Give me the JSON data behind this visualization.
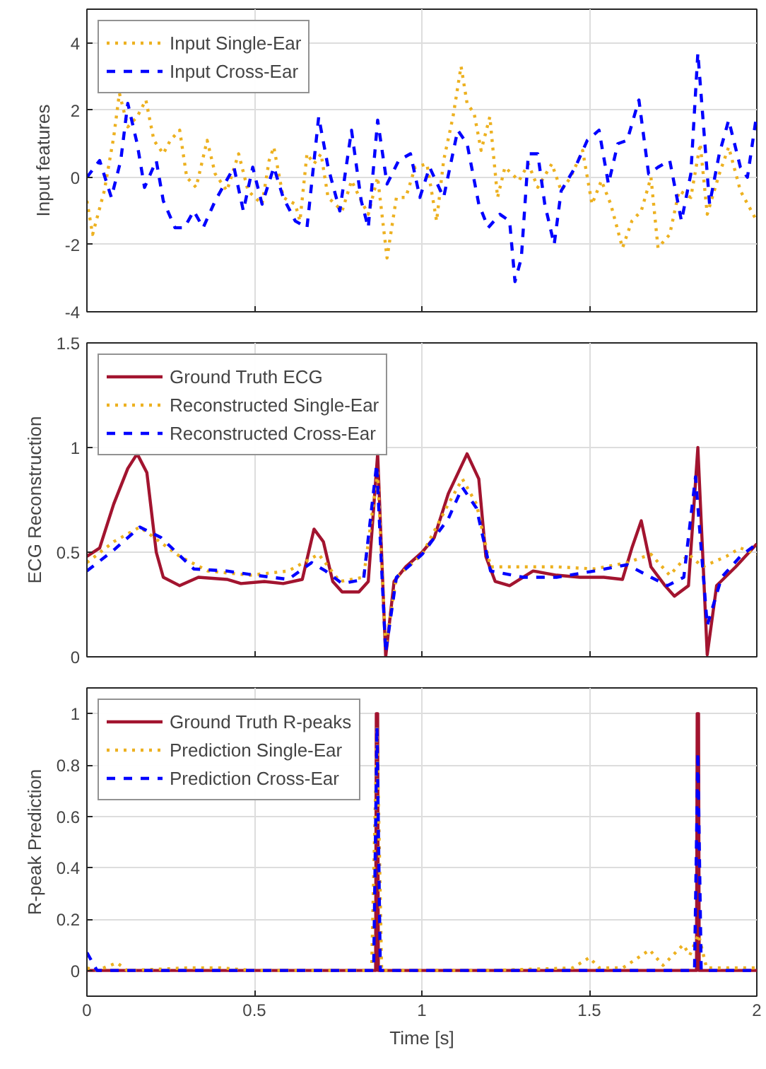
{
  "chart_data": [
    {
      "type": "line",
      "ylabel": "Input features",
      "xlim": [
        0,
        2
      ],
      "ylim": [
        -4,
        5
      ],
      "xticks": [
        0,
        0.5,
        1,
        1.5,
        2
      ],
      "yticks": [
        -4,
        -2,
        0,
        2,
        4
      ],
      "tick_labels": "y",
      "grid": true,
      "legend": "top left",
      "series": [
        {
          "name": "Input Single-Ear",
          "color": "#edb120",
          "line_style": "dotted",
          "x": [
            0,
            0.017,
            0.052,
            0.08,
            0.097,
            0.122,
            0.15,
            0.176,
            0.2,
            0.228,
            0.249,
            0.277,
            0.298,
            0.326,
            0.359,
            0.383,
            0.418,
            0.453,
            0.481,
            0.523,
            0.544,
            0.558,
            0.586,
            0.622,
            0.636,
            0.657,
            0.678,
            0.699,
            0.72,
            0.762,
            0.79,
            0.819,
            0.84,
            0.868,
            0.896,
            0.924,
            0.952,
            0.98,
            1.015,
            1.044,
            1.065,
            1.093,
            1.117,
            1.135,
            1.156,
            1.177,
            1.203,
            1.226,
            1.248,
            1.29,
            1.318,
            1.346,
            1.388,
            1.416,
            1.444,
            1.48,
            1.508,
            1.536,
            1.564,
            1.599,
            1.627,
            1.655,
            1.684,
            1.705,
            1.74,
            1.768,
            1.803,
            1.831,
            1.852,
            1.888,
            1.916,
            1.951,
            2.0
          ],
          "values": [
            -0.7,
            -1.7,
            -0.4,
            1.2,
            2.5,
            1.5,
            1.8,
            2.3,
            1.1,
            0.7,
            1.1,
            1.4,
            0.0,
            -0.3,
            1.1,
            0.1,
            -0.4,
            0.7,
            -0.4,
            -0.8,
            0.5,
            0.9,
            -0.6,
            -0.8,
            -1.3,
            0.7,
            0.4,
            0.7,
            -0.6,
            -1.0,
            -0.1,
            -0.7,
            -1.1,
            0.0,
            -2.4,
            -0.6,
            -0.6,
            0.3,
            0.4,
            -1.3,
            0.5,
            1.8,
            3.3,
            2.2,
            1.9,
            0.8,
            1.8,
            -0.6,
            0.3,
            -0.1,
            0.4,
            -0.3,
            0.4,
            -0.4,
            0.0,
            0.8,
            -0.8,
            -0.1,
            -0.8,
            -2.1,
            -1.3,
            -1.0,
            0.0,
            -2.1,
            -1.7,
            -0.4,
            -0.6,
            1.0,
            -1.1,
            0.1,
            0.9,
            -0.4,
            -1.3
          ]
        },
        {
          "name": "Input Cross-Ear",
          "color": "#0000ff",
          "line_style": "dashed",
          "x": [
            0,
            0.038,
            0.073,
            0.101,
            0.122,
            0.15,
            0.172,
            0.207,
            0.228,
            0.263,
            0.291,
            0.319,
            0.347,
            0.383,
            0.439,
            0.467,
            0.495,
            0.523,
            0.558,
            0.586,
            0.622,
            0.657,
            0.692,
            0.72,
            0.755,
            0.79,
            0.819,
            0.84,
            0.868,
            0.896,
            0.931,
            0.966,
            0.994,
            1.023,
            1.065,
            1.107,
            1.135,
            1.17,
            1.198,
            1.233,
            1.262,
            1.278,
            1.297,
            1.318,
            1.346,
            1.367,
            1.395,
            1.416,
            1.458,
            1.494,
            1.529,
            1.557,
            1.585,
            1.613,
            1.648,
            1.677,
            1.705,
            1.74,
            1.775,
            1.803,
            1.824,
            1.845,
            1.859,
            1.888,
            1.916,
            1.951,
            1.972,
            2.0
          ],
          "values": [
            0.0,
            0.5,
            -0.6,
            0.5,
            2.2,
            1.0,
            -0.3,
            0.5,
            -0.7,
            -1.5,
            -1.5,
            -1.0,
            -1.5,
            -0.7,
            0.3,
            -1.0,
            0.3,
            -0.8,
            0.3,
            -0.6,
            -1.3,
            -1.5,
            1.8,
            0.3,
            -1.0,
            1.4,
            -0.7,
            -1.5,
            1.7,
            -0.2,
            0.5,
            0.7,
            -0.6,
            0.3,
            -0.6,
            1.4,
            1.0,
            -0.8,
            -1.5,
            -1.1,
            -1.3,
            -3.1,
            -2.4,
            0.7,
            0.7,
            -0.8,
            -2.0,
            -0.4,
            0.3,
            1.1,
            1.4,
            -0.2,
            1.0,
            1.1,
            2.3,
            0.1,
            0.3,
            0.5,
            -1.3,
            0.1,
            3.7,
            1.0,
            -0.8,
            0.7,
            1.7,
            0.3,
            0.0,
            1.9
          ]
        }
      ]
    },
    {
      "type": "line",
      "ylabel": "ECG Reconstruction",
      "xlim": [
        0,
        2
      ],
      "ylim": [
        0,
        1.5
      ],
      "xticks": [
        0,
        0.5,
        1,
        1.5,
        2
      ],
      "yticks": [
        0,
        0.5,
        1,
        1.5
      ],
      "tick_labels": "y",
      "grid": true,
      "legend": "top left",
      "series": [
        {
          "name": "Ground Truth ECG",
          "color": "#a2142f",
          "line_style": "solid",
          "x": [
            0,
            0.038,
            0.08,
            0.122,
            0.15,
            0.179,
            0.207,
            0.228,
            0.277,
            0.333,
            0.418,
            0.46,
            0.53,
            0.586,
            0.643,
            0.678,
            0.706,
            0.734,
            0.762,
            0.812,
            0.84,
            0.868,
            0.892,
            0.917,
            0.952,
            1.001,
            1.037,
            1.079,
            1.135,
            1.17,
            1.191,
            1.219,
            1.262,
            1.332,
            1.402,
            1.472,
            1.543,
            1.599,
            1.627,
            1.655,
            1.684,
            1.726,
            1.754,
            1.796,
            1.824,
            1.852,
            1.88,
            1.937,
            2.0
          ],
          "values": [
            0.48,
            0.52,
            0.73,
            0.9,
            0.97,
            0.88,
            0.5,
            0.38,
            0.34,
            0.38,
            0.37,
            0.35,
            0.36,
            0.35,
            0.37,
            0.61,
            0.55,
            0.36,
            0.31,
            0.31,
            0.36,
            0.97,
            0.0,
            0.36,
            0.43,
            0.5,
            0.57,
            0.78,
            0.97,
            0.85,
            0.48,
            0.36,
            0.34,
            0.41,
            0.39,
            0.38,
            0.38,
            0.37,
            0.52,
            0.65,
            0.43,
            0.34,
            0.29,
            0.34,
            1.0,
            0.01,
            0.34,
            0.43,
            0.54
          ]
        },
        {
          "name": "Reconstructed Single-Ear",
          "color": "#edb120",
          "line_style": "dotted",
          "x": [
            0,
            0.08,
            0.158,
            0.277,
            0.361,
            0.488,
            0.601,
            0.692,
            0.755,
            0.826,
            0.868,
            0.892,
            0.924,
            1.001,
            1.079,
            1.121,
            1.163,
            1.205,
            1.304,
            1.402,
            1.515,
            1.613,
            1.684,
            1.74,
            1.796,
            1.838,
            1.909,
            1.951,
            2.0
          ],
          "values": [
            0.45,
            0.55,
            0.62,
            0.48,
            0.41,
            0.39,
            0.41,
            0.49,
            0.36,
            0.38,
            0.88,
            0.05,
            0.38,
            0.49,
            0.73,
            0.85,
            0.73,
            0.43,
            0.43,
            0.43,
            0.42,
            0.45,
            0.49,
            0.39,
            0.49,
            0.43,
            0.48,
            0.52,
            0.49
          ]
        },
        {
          "name": "Reconstructed Cross-Ear",
          "color": "#0000ff",
          "line_style": "dashed",
          "x": [
            0,
            0.08,
            0.158,
            0.221,
            0.319,
            0.418,
            0.502,
            0.601,
            0.671,
            0.713,
            0.762,
            0.826,
            0.865,
            0.892,
            0.924,
            1.001,
            1.079,
            1.121,
            1.163,
            1.205,
            1.304,
            1.402,
            1.515,
            1.613,
            1.684,
            1.733,
            1.782,
            1.817,
            1.852,
            1.895,
            1.951,
            2.0
          ],
          "values": [
            0.41,
            0.51,
            0.62,
            0.57,
            0.42,
            0.41,
            0.39,
            0.37,
            0.45,
            0.41,
            0.35,
            0.37,
            0.92,
            0.02,
            0.38,
            0.49,
            0.66,
            0.81,
            0.71,
            0.41,
            0.38,
            0.38,
            0.41,
            0.44,
            0.38,
            0.34,
            0.38,
            0.86,
            0.15,
            0.38,
            0.48,
            0.54
          ]
        }
      ]
    },
    {
      "type": "line",
      "xlabel": "Time [s]",
      "ylabel": "R-peak Prediction",
      "xlim": [
        0,
        2
      ],
      "ylim": [
        -0.1,
        1.1
      ],
      "xticks": [
        0,
        0.5,
        1,
        1.5,
        2
      ],
      "yticks": [
        0,
        0.2,
        0.4,
        0.6,
        0.8,
        1
      ],
      "grid": true,
      "legend": "top left",
      "series": [
        {
          "name": "Ground Truth R-peaks",
          "color": "#a2142f",
          "line_style": "solid",
          "x": [
            0,
            0.862,
            0.864,
            0.868,
            0.87,
            1.82,
            1.822,
            1.826,
            1.828,
            2.0
          ],
          "values": [
            0,
            0,
            1,
            1,
            0,
            0,
            1,
            1,
            0,
            0
          ]
        },
        {
          "name": "Prediction Single-Ear",
          "color": "#edb120",
          "line_style": "dotted",
          "x": [
            0,
            0.03,
            0.09,
            0.12,
            0.3,
            0.4,
            0.5,
            0.85,
            0.866,
            0.88,
            1.2,
            1.45,
            1.5,
            1.53,
            1.6,
            1.68,
            1.72,
            1.78,
            1.8,
            1.826,
            1.85,
            1.9,
            2.0
          ],
          "values": [
            0.01,
            0.0,
            0.03,
            0.0,
            0.01,
            0.01,
            0.0,
            0.0,
            0.95,
            0.0,
            0.0,
            0.01,
            0.05,
            0.01,
            0.01,
            0.08,
            0.02,
            0.1,
            0.06,
            0.14,
            0.01,
            0.01,
            0.01
          ]
        },
        {
          "name": "Prediction Cross-Ear",
          "color": "#0000ff",
          "line_style": "dashed",
          "x": [
            0,
            0.03,
            0.856,
            0.866,
            0.876,
            1.814,
            1.824,
            1.834,
            2.0
          ],
          "values": [
            0.07,
            0.0,
            0.0,
            0.95,
            0.0,
            0.0,
            0.85,
            0.0,
            0.0
          ]
        }
      ]
    }
  ]
}
